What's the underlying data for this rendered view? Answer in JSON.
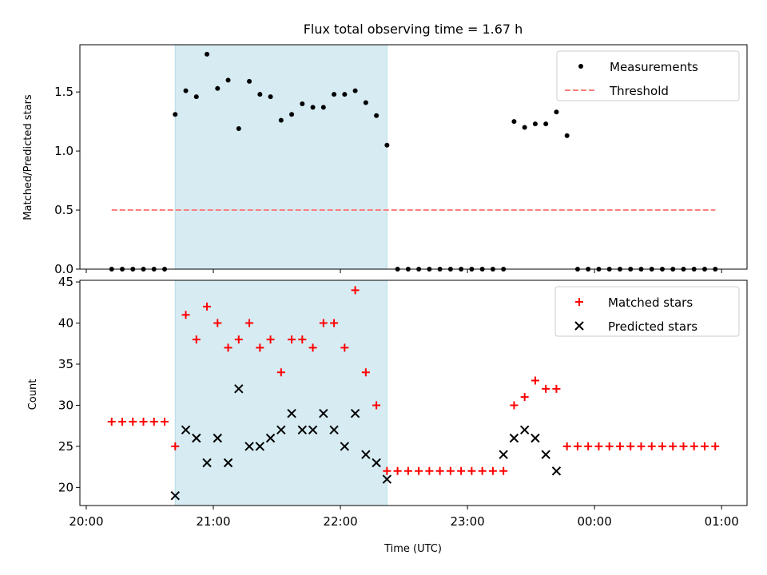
{
  "title": "Flux total observing time = 1.67 h",
  "colors": {
    "shade": "#add8e6",
    "measurement": "#000000",
    "threshold": "#ff7f7f",
    "matched": "#ff0000",
    "predicted": "#000000"
  },
  "chart_data": [
    {
      "type": "scatter",
      "panel": "top",
      "xlabel": "",
      "ylabel": "Matched/Predicted stars",
      "x_axis": "time (UTC, continues past midnight)",
      "xlim": [
        "19:57",
        "01:12"
      ],
      "ylim": [
        0,
        1.9
      ],
      "yticks": [
        0.0,
        0.5,
        1.0,
        1.5
      ],
      "ytick_labels": [
        "0.0",
        "0.5",
        "1.0",
        "1.5"
      ],
      "shaded_span": [
        "20:42",
        "22:22"
      ],
      "legend": {
        "placement": "top-right",
        "entries": [
          "Measurements",
          "Threshold"
        ]
      },
      "series": [
        {
          "name": "Measurements",
          "marker": "dot",
          "x": [
            "20:12",
            "20:17",
            "20:22",
            "20:27",
            "20:32",
            "20:37",
            "20:42",
            "20:47",
            "20:52",
            "20:57",
            "21:02",
            "21:07",
            "21:12",
            "21:17",
            "21:22",
            "21:27",
            "21:32",
            "21:37",
            "21:42",
            "21:47",
            "21:52",
            "21:57",
            "22:02",
            "22:07",
            "22:12",
            "22:17",
            "22:22",
            "22:27",
            "22:32",
            "22:37",
            "22:42",
            "22:47",
            "22:52",
            "22:57",
            "23:02",
            "23:07",
            "23:12",
            "23:17",
            "23:22",
            "23:27",
            "23:32",
            "23:37",
            "23:42",
            "23:47",
            "23:52",
            "23:57",
            "00:02",
            "00:07",
            "00:12",
            "00:17",
            "00:22",
            "00:27",
            "00:32",
            "00:37",
            "00:42",
            "00:47",
            "00:52",
            "00:57"
          ],
          "y": [
            0,
            0,
            0,
            0,
            0,
            0,
            1.31,
            1.51,
            1.46,
            1.82,
            1.53,
            1.6,
            1.19,
            1.59,
            1.48,
            1.46,
            1.26,
            1.31,
            1.4,
            1.37,
            1.37,
            1.48,
            1.48,
            1.51,
            1.41,
            1.3,
            1.05,
            0,
            0,
            0,
            0,
            0,
            0,
            0,
            0,
            0,
            0,
            0,
            1.25,
            1.2,
            1.23,
            1.23,
            1.33,
            1.13,
            0,
            0,
            0,
            0,
            0,
            0,
            0,
            0,
            0,
            0,
            0,
            0,
            0,
            0
          ]
        },
        {
          "name": "Threshold",
          "style": "dashed",
          "x": [
            "20:12",
            "00:57"
          ],
          "y": [
            0.5,
            0.5
          ]
        }
      ]
    },
    {
      "type": "scatter",
      "panel": "bottom",
      "xlabel": "Time (UTC)",
      "ylabel": "Count",
      "xlim": [
        "19:57",
        "01:12"
      ],
      "ylim": [
        17.8,
        45.2
      ],
      "yticks": [
        20,
        25,
        30,
        35,
        40,
        45
      ],
      "xticks": [
        "20:00",
        "21:00",
        "22:00",
        "23:00",
        "00:00",
        "01:00"
      ],
      "shaded_span": [
        "20:42",
        "22:22"
      ],
      "legend": {
        "placement": "top-right",
        "entries": [
          "Matched stars",
          "Predicted stars"
        ]
      },
      "series": [
        {
          "name": "Matched stars",
          "marker": "plus",
          "x": [
            "20:12",
            "20:17",
            "20:22",
            "20:27",
            "20:32",
            "20:37",
            "20:42",
            "20:47",
            "20:52",
            "20:57",
            "21:02",
            "21:07",
            "21:12",
            "21:17",
            "21:22",
            "21:27",
            "21:32",
            "21:37",
            "21:42",
            "21:47",
            "21:52",
            "21:57",
            "22:02",
            "22:07",
            "22:12",
            "22:17",
            "22:22",
            "22:27",
            "22:32",
            "22:37",
            "22:42",
            "22:47",
            "22:52",
            "22:57",
            "23:02",
            "23:07",
            "23:12",
            "23:17",
            "23:22",
            "23:27",
            "23:32",
            "23:37",
            "23:42",
            "23:47",
            "23:52",
            "23:57",
            "00:02",
            "00:07",
            "00:12",
            "00:17",
            "00:22",
            "00:27",
            "00:32",
            "00:37",
            "00:42",
            "00:47",
            "00:52",
            "00:57"
          ],
          "y": [
            28,
            28,
            28,
            28,
            28,
            28,
            25,
            41,
            38,
            42,
            40,
            37,
            38,
            40,
            37,
            38,
            34,
            38,
            38,
            37,
            40,
            40,
            37,
            44,
            34,
            30,
            22,
            22,
            22,
            22,
            22,
            22,
            22,
            22,
            22,
            22,
            22,
            22,
            30,
            31,
            33,
            32,
            32,
            25,
            25,
            25,
            25,
            25,
            25,
            25,
            25,
            25,
            25,
            25,
            25,
            25,
            25,
            25
          ]
        },
        {
          "name": "Predicted stars",
          "marker": "x",
          "x": [
            "20:42",
            "20:47",
            "20:52",
            "20:57",
            "21:02",
            "21:07",
            "21:12",
            "21:17",
            "21:22",
            "21:27",
            "21:32",
            "21:37",
            "21:42",
            "21:47",
            "21:52",
            "21:57",
            "22:02",
            "22:07",
            "22:12",
            "22:17",
            "22:22",
            "23:17",
            "23:22",
            "23:27",
            "23:32",
            "23:37",
            "23:42"
          ],
          "y": [
            19,
            27,
            26,
            23,
            26,
            23,
            32,
            25,
            25,
            26,
            27,
            29,
            27,
            27,
            29,
            27,
            25,
            29,
            24,
            23,
            21,
            24,
            26,
            27,
            26,
            24,
            22
          ]
        }
      ]
    }
  ]
}
